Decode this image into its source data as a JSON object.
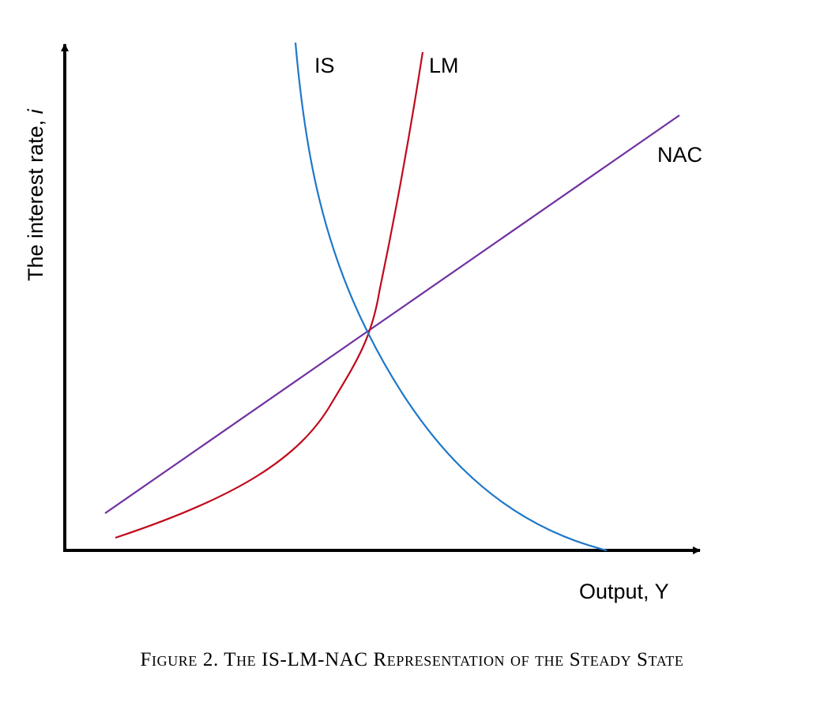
{
  "figure": {
    "caption": "Figure 2. The IS-LM-NAC Representation of the Steady State"
  },
  "chart_data": {
    "type": "line",
    "title": "",
    "xlabel": "Output, Y",
    "ylabel_prefix": "The interest rate, ",
    "ylabel_symbol": "i",
    "ticks": "none",
    "grid": false,
    "series": [
      {
        "name": "IS",
        "color": "#1f78c8",
        "shape": "downward-sloping convex curve"
      },
      {
        "name": "LM",
        "color": "#c00a1c",
        "shape": "upward-sloping convex curve"
      },
      {
        "name": "NAC",
        "color": "#7030a0",
        "shape": "upward-sloping straight line"
      }
    ],
    "intersection": "all three curves meet at a single point"
  }
}
